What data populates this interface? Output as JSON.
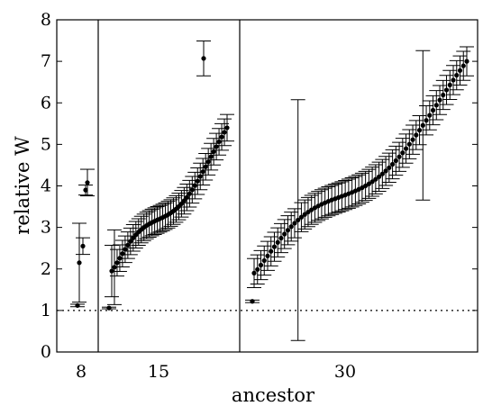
{
  "chart_data": {
    "type": "scatter",
    "title": "",
    "xlabel": "ancestor",
    "ylabel": "relative W",
    "ylim": [
      0,
      8
    ],
    "yticks": [
      "0",
      "1",
      "2",
      "3",
      "4",
      "5",
      "6",
      "7",
      "8"
    ],
    "reference_line": {
      "y": 1,
      "style": "dotted"
    },
    "grid": false,
    "legend": "none",
    "groups": [
      {
        "ancestor": "8",
        "points": [
          {
            "y": 1.12,
            "err": 0.03
          },
          {
            "y": 2.15,
            "err": 0.95
          },
          {
            "y": 2.55,
            "err": 0.2
          },
          {
            "y": 3.9,
            "err": 0.12
          },
          {
            "y": 4.08,
            "err": 0.32
          }
        ]
      },
      {
        "ancestor": "15",
        "outliers": [
          {
            "y": 1.06,
            "err": 0.02
          },
          {
            "y": 7.07,
            "err": 0.42
          }
        ],
        "curve": {
          "n": 44,
          "start": 1.95,
          "end": 5.4,
          "err": 0.32
        },
        "wide_errors": [
          {
            "index": 0,
            "err": 0.62
          },
          {
            "index": 1,
            "err": 0.9
          }
        ]
      },
      {
        "ancestor": "30",
        "outliers": [
          {
            "y": 1.22,
            "err": 0.03
          }
        ],
        "curve": {
          "n": 64,
          "start": 1.9,
          "end": 7.0,
          "err": 0.35
        },
        "wide_errors": [
          {
            "index": 13,
            "err": 2.9
          },
          {
            "index": 50,
            "err": 1.8
          }
        ]
      }
    ]
  }
}
